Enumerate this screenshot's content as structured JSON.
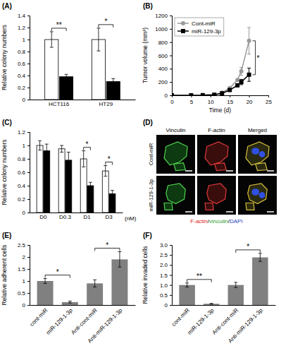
{
  "chart_data": [
    {
      "type": "bar",
      "panel": "(A)",
      "categories": [
        "HCT116",
        "HT29"
      ],
      "series": [
        {
          "color": "#ffffff",
          "values": [
            1.0,
            1.0
          ],
          "errors": [
            0.13,
            0.19
          ]
        },
        {
          "color": "#000000",
          "values": [
            0.38,
            0.3
          ],
          "errors": [
            0.04,
            0.05
          ]
        }
      ],
      "y_label": "Relative colony numbers",
      "ylim": [
        0,
        1.4
      ],
      "yticks": [
        0,
        0.2,
        0.4,
        0.6,
        0.8,
        1,
        1.2,
        1.4
      ],
      "annotations": [
        {
          "text": "**",
          "group": "HCT116"
        },
        {
          "text": "*",
          "group": "HT29"
        }
      ]
    },
    {
      "type": "line",
      "panel": "(B)",
      "x": [
        0,
        5,
        8,
        11,
        13,
        15,
        17,
        18,
        20
      ],
      "series": [
        {
          "name": "Cont-miR",
          "color": "#999999",
          "marker": "circle",
          "values": [
            0,
            0,
            2,
            10,
            40,
            110,
            230,
            360,
            820
          ],
          "errors": [
            null,
            null,
            null,
            null,
            null,
            null,
            null,
            60,
            200
          ]
        },
        {
          "name": "miR-129-3p",
          "color": "#000000",
          "marker": "square",
          "values": [
            0,
            0,
            2,
            8,
            30,
            80,
            150,
            200,
            310
          ],
          "errors": [
            null,
            null,
            null,
            null,
            null,
            null,
            null,
            40,
            100
          ]
        }
      ],
      "x_label": "Time (d)",
      "y_label": "Tumor volume (mm³)",
      "xlim": [
        0,
        25
      ],
      "xticks": [
        0,
        5,
        10,
        15,
        20,
        25
      ],
      "ylim": [
        0,
        1200
      ],
      "yticks": [
        0,
        200,
        400,
        600,
        800,
        1000,
        1200
      ],
      "legend": "top-left",
      "annotations": [
        {
          "text": "*",
          "at": 20
        }
      ]
    },
    {
      "type": "bar",
      "panel": "(C)",
      "categories": [
        "D0",
        "D0.3",
        "D1",
        "D3"
      ],
      "series": [
        {
          "color": "#ffffff",
          "values": [
            1.0,
            0.95,
            0.8,
            0.62
          ],
          "errors": [
            0.07,
            0.05,
            0.12,
            0.08
          ]
        },
        {
          "color": "#000000",
          "values": [
            0.92,
            0.78,
            0.4,
            0.28
          ],
          "errors": [
            0.1,
            0.12,
            0.05,
            0.05
          ]
        }
      ],
      "x_label": "(nM)",
      "y_label": "Relative colony numbers",
      "ylim": [
        0,
        1.2
      ],
      "yticks": [
        0,
        0.2,
        0.4,
        0.6,
        0.8,
        1,
        1.2
      ],
      "annotations": [
        {
          "text": "*",
          "group": "D1"
        },
        {
          "text": "*",
          "group": "D3"
        }
      ]
    },
    {
      "type": "image",
      "panel": "(D)",
      "columns": [
        "Vinculin",
        "F-actin",
        "Merged"
      ],
      "rows": [
        "Cont-miR",
        "miR-129-1-3p"
      ],
      "caption": [
        {
          "text": "F-actin",
          "color": "#e02020"
        },
        {
          "text": "/",
          "color": "#000000"
        },
        {
          "text": "vinculin",
          "color": "#2ca02c"
        },
        {
          "text": "/",
          "color": "#000000"
        },
        {
          "text": "DAPI",
          "color": "#1f3fbf"
        }
      ]
    },
    {
      "type": "bar",
      "panel": "(E)",
      "categories": [
        "cont-miR",
        "miR-129-1-3p",
        "Anti-cont-miR",
        "Anti-miR-129-1-3p"
      ],
      "color": "#808080",
      "values": [
        1.0,
        0.12,
        0.9,
        1.9
      ],
      "errors": [
        0.1,
        0.04,
        0.15,
        0.32
      ],
      "y_label": "Relative adherent cells",
      "ylim": [
        0,
        2.5
      ],
      "yticks": [
        0,
        0.5,
        1,
        1.5,
        2,
        2.5
      ],
      "annotations": [
        {
          "text": "*",
          "between": [
            "cont-miR",
            "miR-129-1-3p"
          ]
        },
        {
          "text": "*",
          "between": [
            "Anti-cont-miR",
            "Anti-miR-129-1-3p"
          ]
        }
      ]
    },
    {
      "type": "bar",
      "panel": "(F)",
      "categories": [
        "cont-miR",
        "miR-129-1-3p",
        "Anti-cont-miR",
        "Anti-miR-129-1-3p"
      ],
      "color": "#808080",
      "values": [
        1.0,
        0.06,
        1.0,
        2.38
      ],
      "errors": [
        0.1,
        0.02,
        0.13,
        0.2
      ],
      "y_label": "Relative invaded cells",
      "ylim": [
        0,
        3
      ],
      "yticks": [
        0,
        0.5,
        {
          "value": 1,
          "label": "1.0"
        },
        1.5,
        {
          "value": 2,
          "label": "2.0"
        },
        2.5,
        {
          "value": 3,
          "label": "3.0"
        }
      ],
      "annotations": [
        {
          "text": "**",
          "between": [
            "cont-miR",
            "miR-129-1-3p"
          ]
        },
        {
          "text": "*",
          "between": [
            "Anti-cont-miR",
            "Anti-miR-129-1-3p"
          ]
        }
      ]
    }
  ]
}
